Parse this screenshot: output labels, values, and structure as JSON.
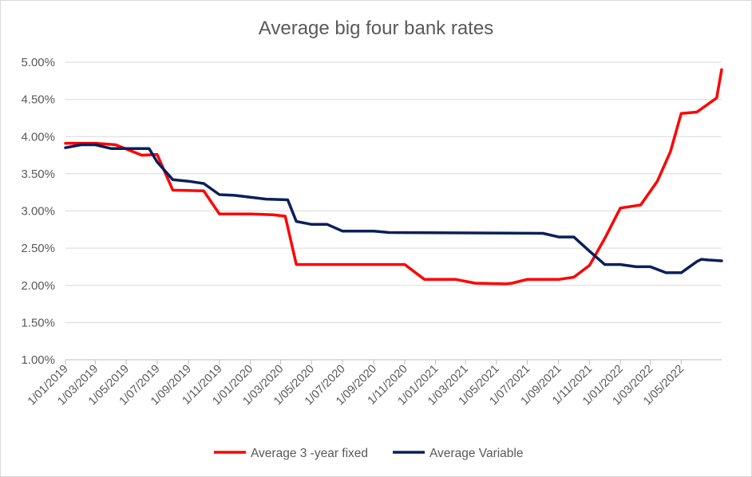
{
  "chart_data": {
    "type": "line",
    "title": "Average big four bank rates",
    "xlabel": "",
    "ylabel": "",
    "ylim": [
      1.0,
      5.0
    ],
    "yticks": [
      "1.00%",
      "1.50%",
      "2.00%",
      "2.50%",
      "3.00%",
      "3.50%",
      "4.00%",
      "4.50%",
      "5.00%"
    ],
    "xlim": [
      "2019-01-01",
      "2022-07-20"
    ],
    "xticks": [
      {
        "date": "2019-01-01",
        "label": "1/01/2019"
      },
      {
        "date": "2019-03-01",
        "label": "1/03/2019"
      },
      {
        "date": "2019-05-01",
        "label": "1/05/2019"
      },
      {
        "date": "2019-07-01",
        "label": "1/07/2019"
      },
      {
        "date": "2019-09-01",
        "label": "1/09/2019"
      },
      {
        "date": "2019-11-01",
        "label": "1/11/2019"
      },
      {
        "date": "2020-01-01",
        "label": "1/01/2020"
      },
      {
        "date": "2020-03-01",
        "label": "1/03/2020"
      },
      {
        "date": "2020-05-01",
        "label": "1/05/2020"
      },
      {
        "date": "2020-07-01",
        "label": "1/07/2020"
      },
      {
        "date": "2020-09-01",
        "label": "1/09/2020"
      },
      {
        "date": "2020-11-01",
        "label": "1/11/2020"
      },
      {
        "date": "2021-01-01",
        "label": "1/01/2021"
      },
      {
        "date": "2021-03-01",
        "label": "1/03/2021"
      },
      {
        "date": "2021-05-01",
        "label": "1/05/2021"
      },
      {
        "date": "2021-07-01",
        "label": "1/07/2021"
      },
      {
        "date": "2021-09-01",
        "label": "1/09/2021"
      },
      {
        "date": "2021-11-01",
        "label": "1/11/2021"
      },
      {
        "date": "2022-01-01",
        "label": "1/01/2022"
      },
      {
        "date": "2022-03-01",
        "label": "1/03/2022"
      },
      {
        "date": "2022-05-01",
        "label": "1/05/2022"
      }
    ],
    "grid": "horizontal",
    "legend_position": "bottom",
    "series": [
      {
        "name": "Average 3 -year fixed",
        "color": "#ff0000",
        "points": [
          [
            "2019-01-01",
            3.91
          ],
          [
            "2019-03-01",
            3.91
          ],
          [
            "2019-04-10",
            3.89
          ],
          [
            "2019-06-01",
            3.75
          ],
          [
            "2019-07-01",
            3.76
          ],
          [
            "2019-08-01",
            3.28
          ],
          [
            "2019-10-01",
            3.27
          ],
          [
            "2019-11-01",
            2.96
          ],
          [
            "2020-01-01",
            2.96
          ],
          [
            "2020-02-15",
            2.95
          ],
          [
            "2020-03-10",
            2.93
          ],
          [
            "2020-04-01",
            2.28
          ],
          [
            "2020-11-01",
            2.28
          ],
          [
            "2020-12-10",
            2.08
          ],
          [
            "2021-02-10",
            2.08
          ],
          [
            "2021-03-20",
            2.03
          ],
          [
            "2021-05-20",
            2.02
          ],
          [
            "2021-06-01",
            2.03
          ],
          [
            "2021-07-01",
            2.08
          ],
          [
            "2021-09-01",
            2.08
          ],
          [
            "2021-10-01",
            2.11
          ],
          [
            "2021-11-01",
            2.27
          ],
          [
            "2021-12-01",
            2.63
          ],
          [
            "2022-01-01",
            3.04
          ],
          [
            "2022-02-10",
            3.08
          ],
          [
            "2022-03-15",
            3.4
          ],
          [
            "2022-04-10",
            3.8
          ],
          [
            "2022-05-01",
            4.31
          ],
          [
            "2022-06-01",
            4.33
          ],
          [
            "2022-07-10",
            4.52
          ],
          [
            "2022-07-20",
            4.9
          ]
        ]
      },
      {
        "name": "Average Variable",
        "color": "#0a1f5c",
        "points": [
          [
            "2019-01-01",
            3.85
          ],
          [
            "2019-02-01",
            3.89
          ],
          [
            "2019-03-01",
            3.89
          ],
          [
            "2019-04-01",
            3.84
          ],
          [
            "2019-05-01",
            3.84
          ],
          [
            "2019-06-15",
            3.84
          ],
          [
            "2019-07-01",
            3.66
          ],
          [
            "2019-08-01",
            3.42
          ],
          [
            "2019-09-01",
            3.4
          ],
          [
            "2019-10-01",
            3.37
          ],
          [
            "2019-11-01",
            3.22
          ],
          [
            "2019-12-01",
            3.21
          ],
          [
            "2020-02-01",
            3.16
          ],
          [
            "2020-03-15",
            3.15
          ],
          [
            "2020-04-01",
            2.86
          ],
          [
            "2020-05-01",
            2.82
          ],
          [
            "2020-06-01",
            2.82
          ],
          [
            "2020-07-01",
            2.73
          ],
          [
            "2020-09-01",
            2.73
          ],
          [
            "2020-10-01",
            2.71
          ],
          [
            "2021-08-01",
            2.7
          ],
          [
            "2021-09-01",
            2.65
          ],
          [
            "2021-10-01",
            2.65
          ],
          [
            "2021-11-01",
            2.46
          ],
          [
            "2021-12-01",
            2.28
          ],
          [
            "2022-01-01",
            2.28
          ],
          [
            "2022-02-01",
            2.25
          ],
          [
            "2022-03-01",
            2.25
          ],
          [
            "2022-04-01",
            2.17
          ],
          [
            "2022-05-01",
            2.17
          ],
          [
            "2022-06-01",
            2.32
          ],
          [
            "2022-06-10",
            2.35
          ],
          [
            "2022-06-25",
            2.34
          ],
          [
            "2022-07-20",
            2.33
          ]
        ]
      }
    ]
  }
}
